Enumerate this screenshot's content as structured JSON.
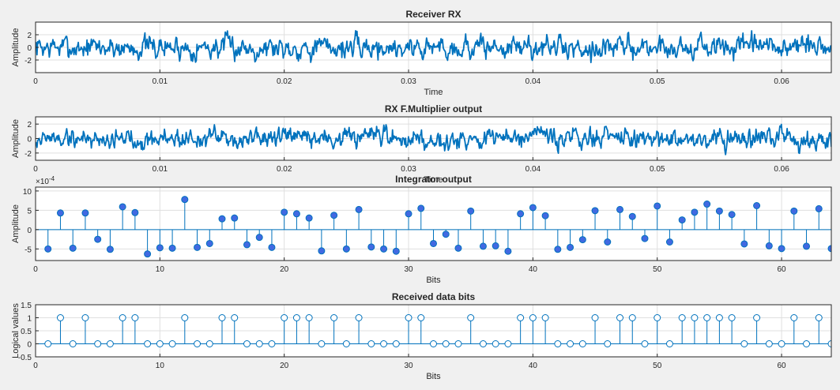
{
  "figure_background": "#f0f0f0",
  "line_color": "#0072bd",
  "stem_fill": "#4169e1",
  "chart_data": [
    {
      "type": "line",
      "title": "Receiver RX",
      "xlabel": "Time",
      "ylabel": "Amplitude",
      "xlim": [
        0,
        0.064
      ],
      "ylim": [
        -4,
        4
      ],
      "xticks": [
        0,
        0.01,
        0.02,
        0.03,
        0.04,
        0.05,
        0.06
      ],
      "xtick_labels": [
        "0",
        "0.01",
        "0.02",
        "0.03",
        "0.04",
        "0.05",
        "0.06"
      ],
      "yticks": [
        -2,
        0,
        2
      ],
      "ytick_labels": [
        "-2",
        "0",
        "2"
      ],
      "grid": true,
      "series": [
        {
          "name": "rx",
          "description": "noisy received signal, amplitude roughly -2.5 to 2.8 (approximated)",
          "seed": 7,
          "points": 1100,
          "amplitude": 1.3
        }
      ]
    },
    {
      "type": "line",
      "title": "RX F.Multiplier output",
      "xlabel": "Time",
      "ylabel": "Amplitude",
      "xlim": [
        0,
        0.064
      ],
      "ylim": [
        -3,
        3
      ],
      "xticks": [
        0,
        0.01,
        0.02,
        0.03,
        0.04,
        0.05,
        0.06
      ],
      "xtick_labels": [
        "0",
        "0.01",
        "0.02",
        "0.03",
        "0.04",
        "0.05",
        "0.06"
      ],
      "yticks": [
        -2,
        0,
        2
      ],
      "ytick_labels": [
        "-2",
        "0",
        "2"
      ],
      "grid": true,
      "series": [
        {
          "name": "mult",
          "description": "multiplier output, amplitude roughly -2.5 to 2.5 (approximated)",
          "seed": 19,
          "points": 1100,
          "amplitude": 1.0
        }
      ]
    },
    {
      "type": "stem",
      "title": "Integrator output",
      "xlabel": "Bits",
      "ylabel": "Amplitude",
      "exponent_label": "×10",
      "exponent_power": "-4",
      "xlim": [
        0,
        64
      ],
      "ylim": [
        -8,
        11
      ],
      "xticks": [
        0,
        10,
        20,
        30,
        40,
        50,
        60
      ],
      "xtick_labels": [
        "0",
        "10",
        "20",
        "30",
        "40",
        "50",
        "60"
      ],
      "yticks": [
        -5,
        0,
        5,
        10
      ],
      "ytick_labels": [
        "-5",
        "0",
        "5",
        "10"
      ],
      "grid": true,
      "filled": true,
      "x": [
        1,
        2,
        3,
        4,
        5,
        6,
        7,
        8,
        9,
        10,
        11,
        12,
        13,
        14,
        15,
        16,
        17,
        18,
        19,
        20,
        21,
        22,
        23,
        24,
        25,
        26,
        27,
        28,
        29,
        30,
        31,
        32,
        33,
        34,
        35,
        36,
        37,
        38,
        39,
        40,
        41,
        42,
        43,
        44,
        45,
        46,
        47,
        48,
        49,
        50,
        51,
        52,
        53,
        54,
        55,
        56,
        57,
        58,
        59,
        60,
        61,
        62,
        63,
        64
      ],
      "values": [
        -5.0,
        4.3,
        -4.8,
        4.3,
        -2.5,
        -5.1,
        5.9,
        4.4,
        -6.3,
        -4.7,
        -4.8,
        7.8,
        -4.6,
        -3.6,
        2.8,
        3.0,
        -3.9,
        -2.0,
        -4.6,
        4.5,
        4.1,
        3.0,
        -5.5,
        3.7,
        -5.0,
        5.2,
        -4.5,
        -5.0,
        -5.6,
        4.1,
        5.5,
        -3.6,
        -1.2,
        -4.8,
        4.8,
        -4.3,
        -4.2,
        -5.6,
        4.1,
        5.7,
        3.6,
        -5.1,
        -4.6,
        -2.6,
        4.9,
        -3.2,
        5.2,
        3.4,
        -2.3,
        6.1,
        -3.2,
        2.5,
        4.5,
        6.6,
        4.8,
        3.9,
        -3.7,
        6.2,
        -4.2,
        -4.9,
        4.8,
        -4.3,
        5.4,
        -4.9
      ]
    },
    {
      "type": "stem",
      "title": "Received data bits",
      "xlabel": "Bits",
      "ylabel": "Logical values",
      "xlim": [
        0,
        64
      ],
      "ylim": [
        -0.5,
        1.5
      ],
      "xticks": [
        0,
        10,
        20,
        30,
        40,
        50,
        60
      ],
      "xtick_labels": [
        "0",
        "10",
        "20",
        "30",
        "40",
        "50",
        "60"
      ],
      "yticks": [
        -0.5,
        0,
        0.5,
        1,
        1.5
      ],
      "ytick_labels": [
        "-0.5",
        "0",
        "0.5",
        "1",
        "1.5"
      ],
      "grid": true,
      "filled": false,
      "x": [
        1,
        2,
        3,
        4,
        5,
        6,
        7,
        8,
        9,
        10,
        11,
        12,
        13,
        14,
        15,
        16,
        17,
        18,
        19,
        20,
        21,
        22,
        23,
        24,
        25,
        26,
        27,
        28,
        29,
        30,
        31,
        32,
        33,
        34,
        35,
        36,
        37,
        38,
        39,
        40,
        41,
        42,
        43,
        44,
        45,
        46,
        47,
        48,
        49,
        50,
        51,
        52,
        53,
        54,
        55,
        56,
        57,
        58,
        59,
        60,
        61,
        62,
        63,
        64
      ],
      "values": [
        0,
        1,
        0,
        1,
        0,
        0,
        1,
        1,
        0,
        0,
        0,
        1,
        0,
        0,
        1,
        1,
        0,
        0,
        0,
        1,
        1,
        1,
        0,
        1,
        0,
        1,
        0,
        0,
        0,
        1,
        1,
        0,
        0,
        0,
        1,
        0,
        0,
        0,
        1,
        1,
        1,
        0,
        0,
        0,
        1,
        0,
        1,
        1,
        0,
        1,
        0,
        1,
        1,
        1,
        1,
        1,
        0,
        1,
        0,
        0,
        1,
        0,
        1,
        0
      ]
    }
  ]
}
